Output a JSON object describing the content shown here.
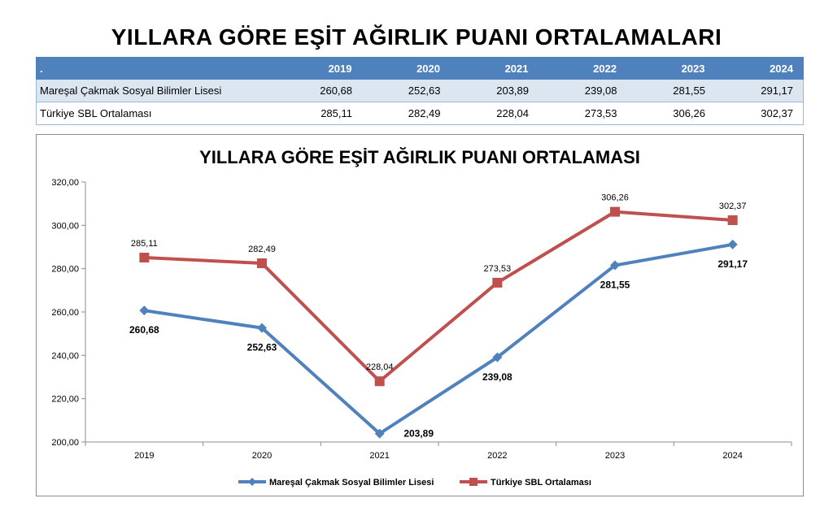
{
  "page_title": "YILLARA GÖRE EŞİT AĞIRLIK PUANI ORTALAMALARI",
  "table": {
    "corner": ".",
    "years": [
      "2019",
      "2020",
      "2021",
      "2022",
      "2023",
      "2024"
    ],
    "rows": [
      {
        "label": "Mareşal Çakmak Sosyal Bilimler Lisesi",
        "values": [
          "260,68",
          "252,63",
          "203,89",
          "239,08",
          "281,55",
          "291,17"
        ]
      },
      {
        "label": "Türkiye SBL Ortalaması",
        "values": [
          "285,11",
          "282,49",
          "228,04",
          "273,53",
          "306,26",
          "302,37"
        ]
      }
    ]
  },
  "chart_data": {
    "type": "line",
    "title": "YILLARA GÖRE EŞİT AĞIRLIK PUANI ORTALAMASI",
    "categories": [
      "2019",
      "2020",
      "2021",
      "2022",
      "2023",
      "2024"
    ],
    "ylim": [
      200,
      320
    ],
    "yticks": [
      "200,00",
      "220,00",
      "240,00",
      "260,00",
      "280,00",
      "300,00",
      "320,00"
    ],
    "xlabel": "",
    "ylabel": "",
    "grid": false,
    "legend_position": "bottom",
    "series": [
      {
        "name": "Mareşal Çakmak Sosyal Bilimler Lisesi",
        "color": "#4f81bd",
        "marker": "diamond",
        "values": [
          260.68,
          252.63,
          203.89,
          239.08,
          281.55,
          291.17
        ],
        "labels": [
          "260,68",
          "252,63",
          "203,89",
          "239,08",
          "281,55",
          "291,17"
        ]
      },
      {
        "name": "Türkiye SBL Ortalaması",
        "color": "#c0504d",
        "marker": "square",
        "values": [
          285.11,
          282.49,
          228.04,
          273.53,
          306.26,
          302.37
        ],
        "labels": [
          "285,11",
          "282,49",
          "228,04",
          "273,53",
          "306,26",
          "302,37"
        ]
      }
    ]
  }
}
